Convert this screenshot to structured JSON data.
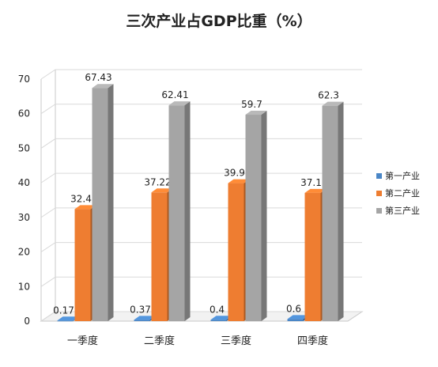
{
  "chart_data": {
    "type": "bar",
    "title": "三次产业占GDP比重（%）",
    "categories": [
      "一季度",
      "二季度",
      "三季度",
      "四季度"
    ],
    "series": [
      {
        "name": "第一产业",
        "values": [
          0.17,
          0.37,
          0.4,
          0.6
        ],
        "labels": [
          "0.17",
          "0.37",
          "0.4",
          "0.6"
        ],
        "color": "#4a86c6"
      },
      {
        "name": "第二产业",
        "values": [
          32.4,
          37.22,
          39.9,
          37.1
        ],
        "labels": [
          "32.4",
          "37.22",
          "39.9",
          "37.1"
        ],
        "color": "#ee7d31"
      },
      {
        "name": "第三产业",
        "values": [
          67.43,
          62.41,
          59.7,
          62.3
        ],
        "labels": [
          "67.43",
          "62.41",
          "59.7",
          "62.3"
        ],
        "color": "#a5a5a5"
      }
    ],
    "yticks": [
      "0",
      "10",
      "20",
      "30",
      "40",
      "50",
      "60",
      "70"
    ],
    "ylim": [
      0,
      70
    ],
    "grid": true,
    "legend_position": "right",
    "style": "3d-clustered-column"
  }
}
